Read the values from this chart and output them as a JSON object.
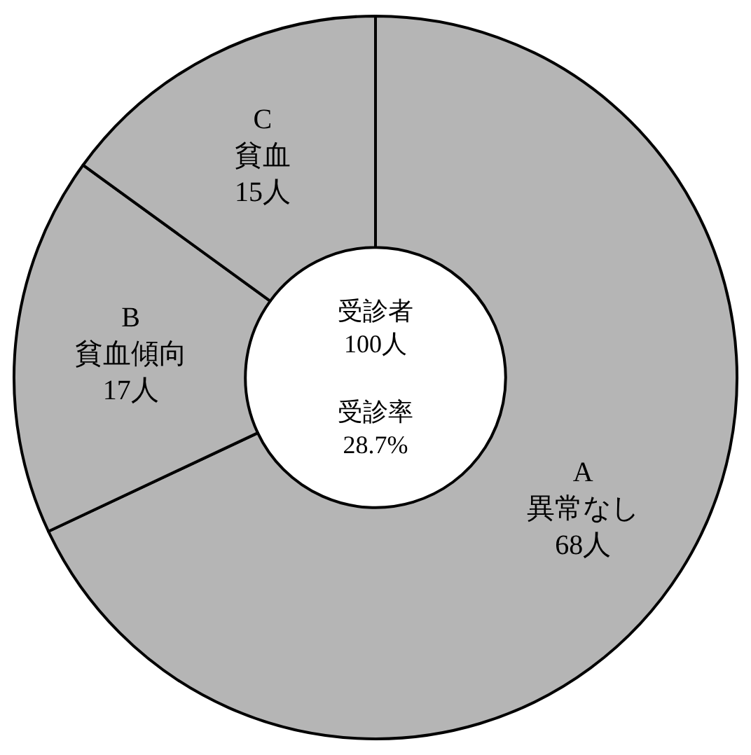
{
  "chart_data": {
    "type": "donut",
    "categories": [
      "A\n異常なし",
      "B\n貧血傾向",
      "C\n貧血"
    ],
    "values": [
      68,
      17,
      15
    ],
    "value_labels": [
      "68人",
      "17人",
      "15人"
    ],
    "colors": [
      "#b5b5b5",
      "#b5b5b5",
      "#b5b5b5"
    ],
    "annotations": [
      "受診者\n100人",
      "受診率\n28.7%"
    ],
    "legend": false
  }
}
